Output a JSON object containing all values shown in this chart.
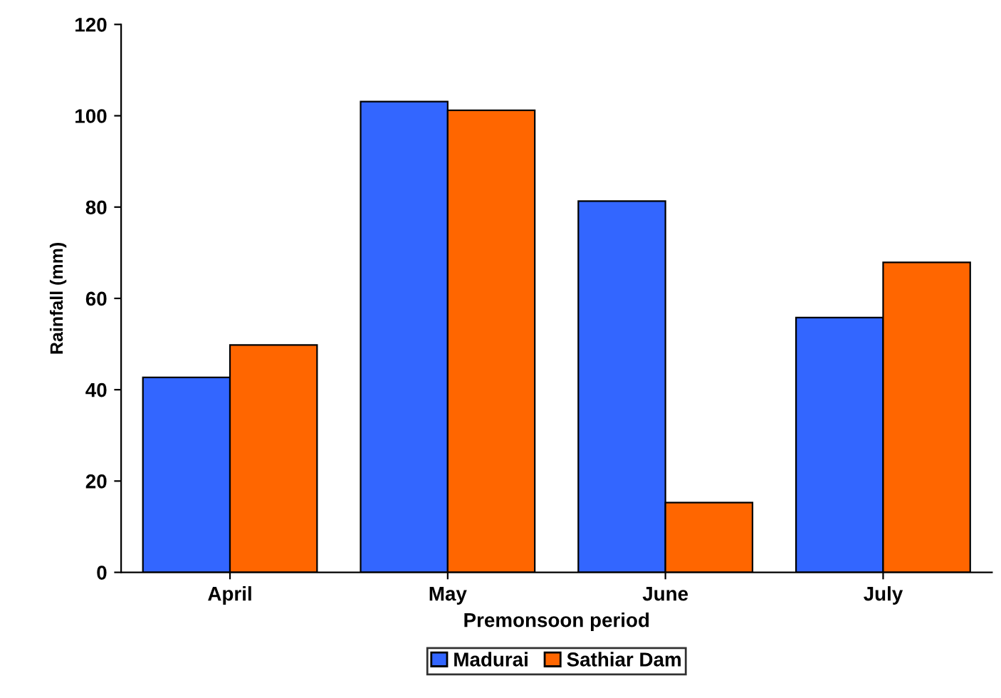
{
  "chart_data": {
    "type": "bar",
    "xlabel": "Premonsoon period",
    "ylabel": "Rainfall (mm)",
    "categories": [
      "April",
      "May",
      "June",
      "July"
    ],
    "series": [
      {
        "name": "Madurai",
        "color": "#3366ff",
        "values": [
          42.7,
          103.1,
          81.3,
          55.8
        ]
      },
      {
        "name": "Sathiar Dam",
        "color": "#ff6600",
        "values": [
          49.8,
          101.2,
          15.3,
          67.9
        ]
      }
    ],
    "ylim": [
      0,
      120
    ],
    "yticks": [
      0,
      20,
      40,
      60,
      80,
      100,
      120
    ],
    "grid": false,
    "legend": "bottom"
  }
}
